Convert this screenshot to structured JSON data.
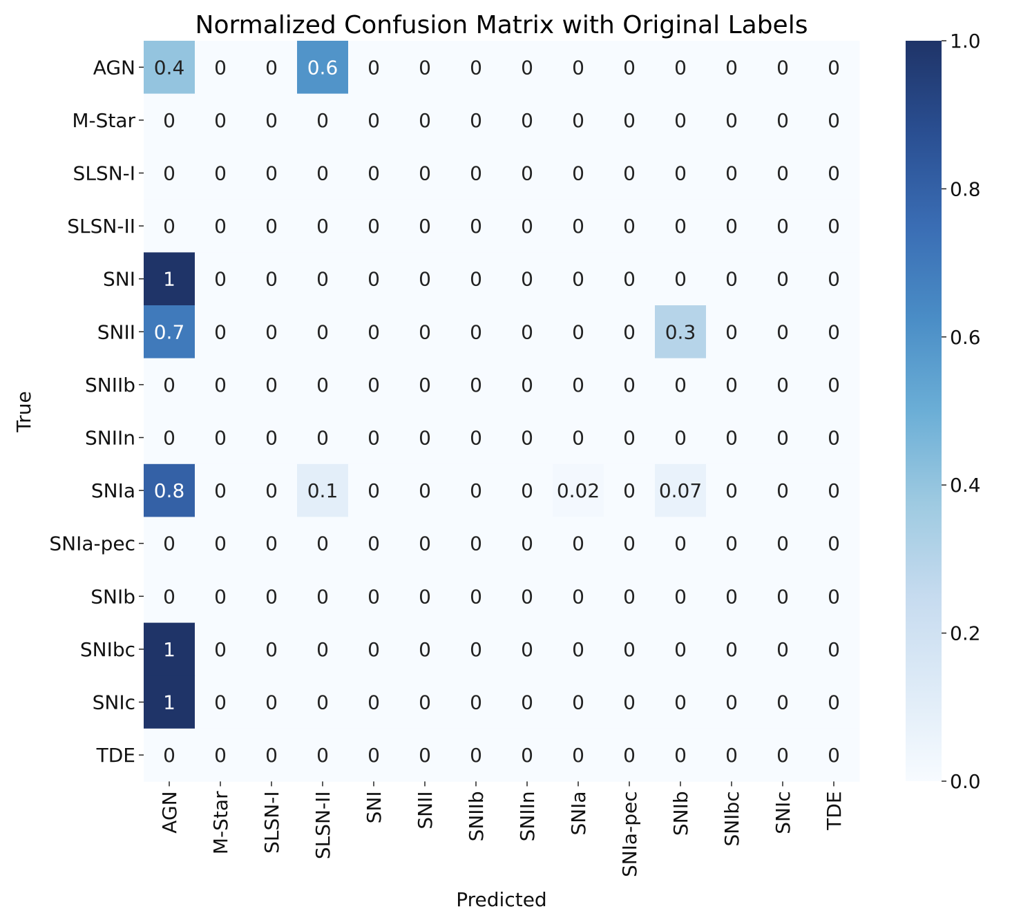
{
  "chart_data": {
    "type": "heatmap",
    "title": "Normalized Confusion Matrix with Original Labels",
    "xlabel": "Predicted",
    "ylabel": "True",
    "x_categories": [
      "AGN",
      "M-Star",
      "SLSN-I",
      "SLSN-II",
      "SNI",
      "SNII",
      "SNIIb",
      "SNIIn",
      "SNIa",
      "SNIa-pec",
      "SNIb",
      "SNIbc",
      "SNIc",
      "TDE"
    ],
    "y_categories": [
      "AGN",
      "M-Star",
      "SLSN-I",
      "SLSN-II",
      "SNI",
      "SNII",
      "SNIIb",
      "SNIIn",
      "SNIa",
      "SNIa-pec",
      "SNIb",
      "SNIbc",
      "SNIc",
      "TDE"
    ],
    "values": [
      [
        "0.4",
        "0",
        "0",
        "0.6",
        "0",
        "0",
        "0",
        "0",
        "0",
        "0",
        "0",
        "0",
        "0",
        "0"
      ],
      [
        "0",
        "0",
        "0",
        "0",
        "0",
        "0",
        "0",
        "0",
        "0",
        "0",
        "0",
        "0",
        "0",
        "0"
      ],
      [
        "0",
        "0",
        "0",
        "0",
        "0",
        "0",
        "0",
        "0",
        "0",
        "0",
        "0",
        "0",
        "0",
        "0"
      ],
      [
        "0",
        "0",
        "0",
        "0",
        "0",
        "0",
        "0",
        "0",
        "0",
        "0",
        "0",
        "0",
        "0",
        "0"
      ],
      [
        "1",
        "0",
        "0",
        "0",
        "0",
        "0",
        "0",
        "0",
        "0",
        "0",
        "0",
        "0",
        "0",
        "0"
      ],
      [
        "0.7",
        "0",
        "0",
        "0",
        "0",
        "0",
        "0",
        "0",
        "0",
        "0",
        "0.3",
        "0",
        "0",
        "0"
      ],
      [
        "0",
        "0",
        "0",
        "0",
        "0",
        "0",
        "0",
        "0",
        "0",
        "0",
        "0",
        "0",
        "0",
        "0"
      ],
      [
        "0",
        "0",
        "0",
        "0",
        "0",
        "0",
        "0",
        "0",
        "0",
        "0",
        "0",
        "0",
        "0",
        "0"
      ],
      [
        "0.8",
        "0",
        "0",
        "0.1",
        "0",
        "0",
        "0",
        "0",
        "0.02",
        "0",
        "0.07",
        "0",
        "0",
        "0"
      ],
      [
        "0",
        "0",
        "0",
        "0",
        "0",
        "0",
        "0",
        "0",
        "0",
        "0",
        "0",
        "0",
        "0",
        "0"
      ],
      [
        "0",
        "0",
        "0",
        "0",
        "0",
        "0",
        "0",
        "0",
        "0",
        "0",
        "0",
        "0",
        "0",
        "0"
      ],
      [
        "1",
        "0",
        "0",
        "0",
        "0",
        "0",
        "0",
        "0",
        "0",
        "0",
        "0",
        "0",
        "0",
        "0"
      ],
      [
        "1",
        "0",
        "0",
        "0",
        "0",
        "0",
        "0",
        "0",
        "0",
        "0",
        "0",
        "0",
        "0",
        "0"
      ],
      [
        "0",
        "0",
        "0",
        "0",
        "0",
        "0",
        "0",
        "0",
        "0",
        "0",
        "0",
        "0",
        "0",
        "0"
      ]
    ],
    "colorbar": {
      "range": [
        0.0,
        1.0
      ],
      "ticks": [
        "0.0",
        "0.2",
        "0.4",
        "0.6",
        "0.8",
        "1.0"
      ],
      "colormap": "Blues",
      "low_color": "#f7fbff",
      "high_color": "#1f3468"
    }
  }
}
